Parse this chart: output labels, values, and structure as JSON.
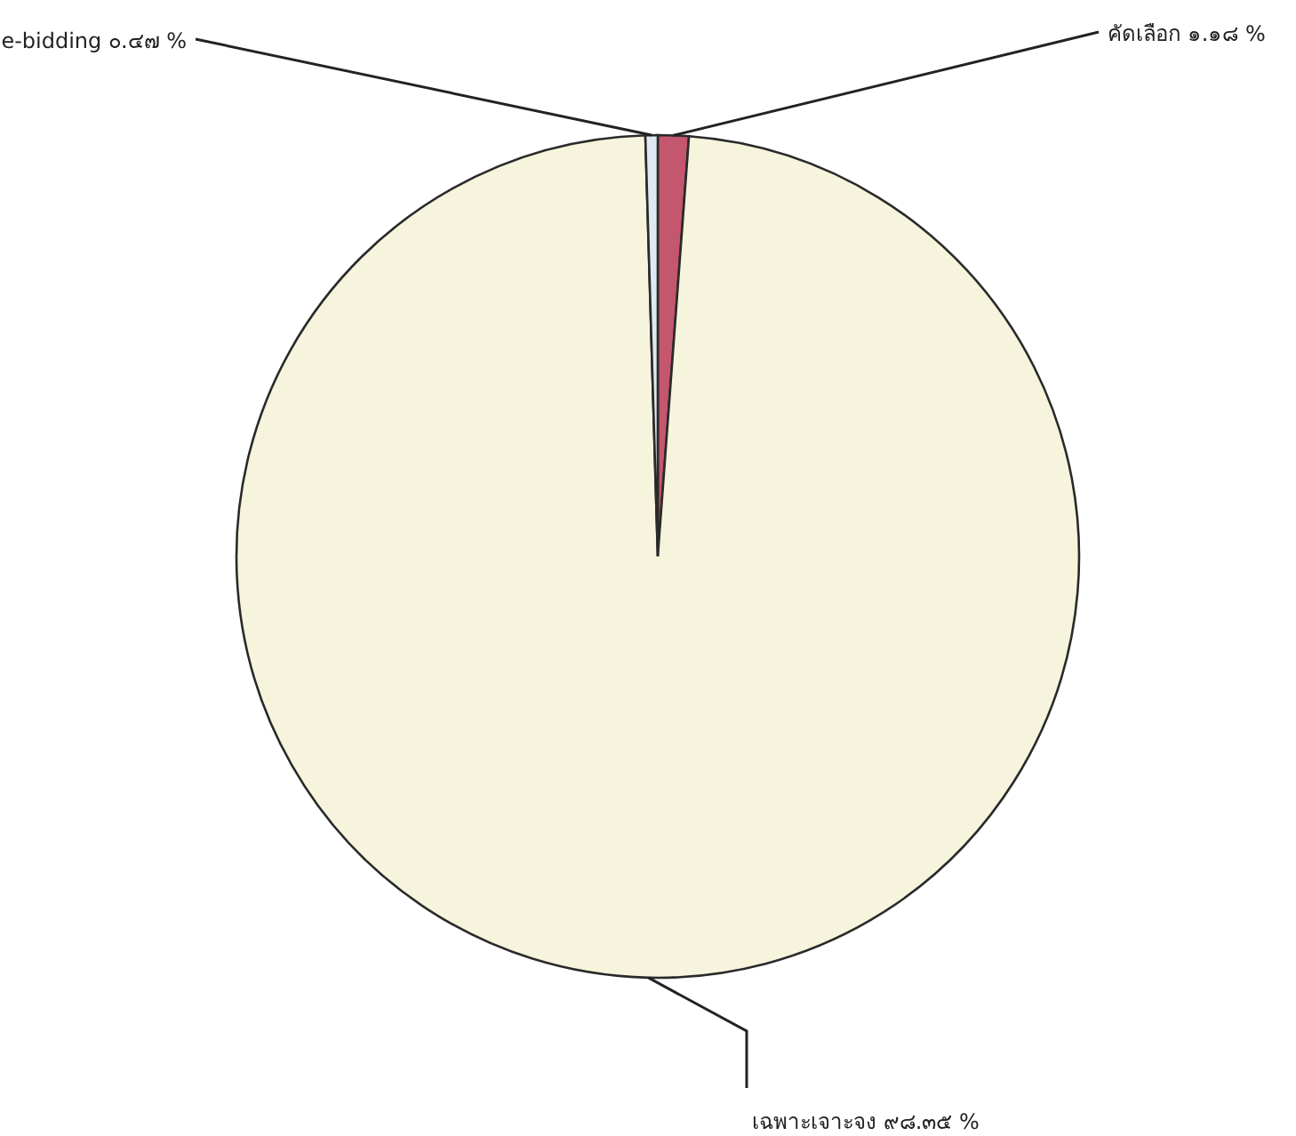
{
  "chart_data": {
    "type": "pie",
    "categories": [
      "คัดเลือก",
      "เฉพาะเจาะจง",
      "e-bidding"
    ],
    "values": [
      1.18,
      98.35,
      0.47
    ],
    "value_labels": [
      "๑.๑๘ %",
      "๙๘.๓๕ %",
      "๐.๔๗ %"
    ],
    "colors": [
      "#c4566e",
      "#f6f4dc",
      "#dfe9f1"
    ],
    "legend": false
  }
}
